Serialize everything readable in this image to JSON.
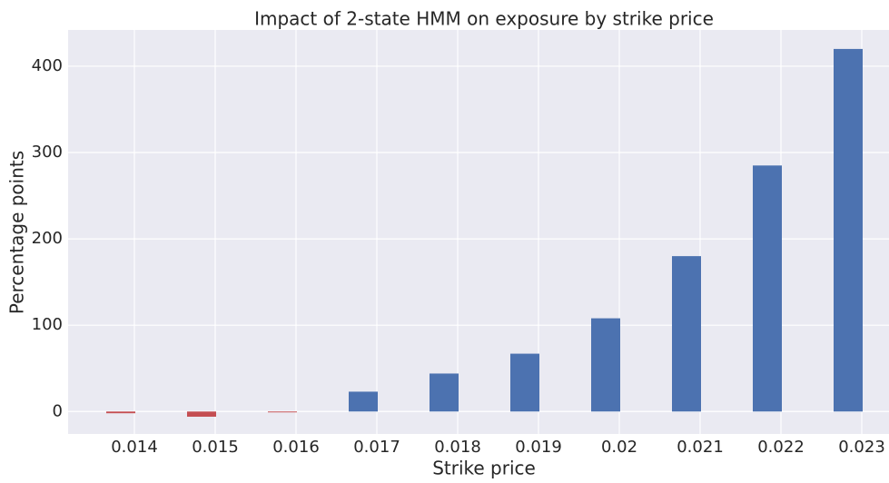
{
  "chart_data": {
    "type": "bar",
    "title": "Impact of 2-state HMM on exposure by strike price",
    "x_label": "Strike price",
    "y_label": "Percentage points",
    "categories": [
      "0.014",
      "0.015",
      "0.016",
      "0.017",
      "0.018",
      "0.019",
      "0.02",
      "0.021",
      "0.022",
      "0.023"
    ],
    "values": [
      -2,
      -6,
      -1,
      23,
      44,
      67,
      108,
      180,
      285,
      420
    ],
    "colors": [
      "#c44e52",
      "#c44e52",
      "#c44e52",
      "#4c72b0",
      "#4c72b0",
      "#4c72b0",
      "#4c72b0",
      "#4c72b0",
      "#4c72b0",
      "#4c72b0"
    ],
    "ylim": [
      -26,
      442
    ],
    "yticks": [
      0,
      100,
      200,
      300,
      400
    ],
    "grid": true
  }
}
